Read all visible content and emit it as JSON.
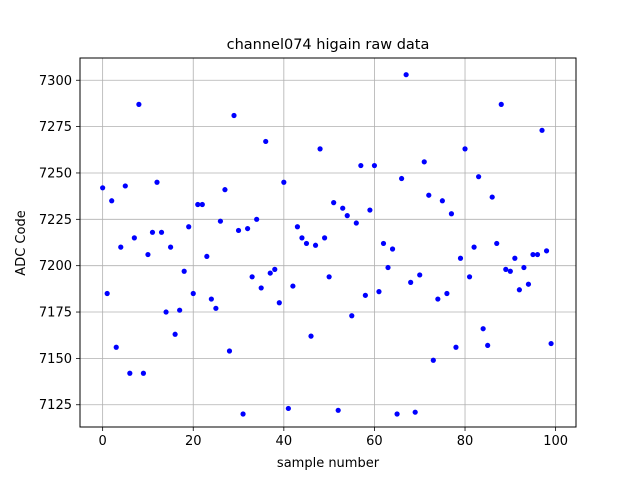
{
  "chart_data": {
    "type": "scatter",
    "title": "channel074 higain raw data",
    "xlabel": "sample number",
    "ylabel": "ADC Code",
    "xlim": [
      -5,
      104.5
    ],
    "ylim": [
      7113,
      7312
    ],
    "xticks": [
      0,
      20,
      40,
      60,
      80,
      100
    ],
    "yticks": [
      7125,
      7150,
      7175,
      7200,
      7225,
      7250,
      7275,
      7300
    ],
    "grid": true,
    "marker_color": "#0000ff",
    "series": [
      {
        "x": [
          0,
          1,
          2,
          3,
          4,
          5,
          6,
          7,
          8,
          9,
          10,
          11,
          12,
          13,
          14,
          15,
          16,
          17,
          18,
          19,
          20,
          21,
          22,
          23,
          24,
          25,
          26,
          27,
          28,
          29,
          30,
          31,
          32,
          33,
          34,
          35,
          36,
          37,
          38,
          39,
          40,
          41,
          42,
          43,
          44,
          45,
          46,
          47,
          48,
          49,
          50,
          51,
          52,
          53,
          54,
          55,
          56,
          57,
          58,
          59,
          60,
          61,
          62,
          63,
          64,
          65,
          66,
          67,
          68,
          69,
          70,
          71,
          72,
          73,
          74,
          75,
          76,
          77,
          78,
          79,
          80,
          81,
          82,
          83,
          84,
          85,
          86,
          87,
          88,
          89,
          90,
          91,
          92,
          93,
          94,
          95,
          96,
          97,
          98,
          99
        ],
        "y": [
          7242,
          7185,
          7235,
          7156,
          7210,
          7243,
          7142,
          7215,
          7287,
          7142,
          7206,
          7218,
          7245,
          7218,
          7175,
          7210,
          7163,
          7176,
          7197,
          7221,
          7185,
          7233,
          7233,
          7205,
          7182,
          7177,
          7224,
          7241,
          7154,
          7281,
          7219,
          7120,
          7220,
          7194,
          7225,
          7188,
          7267,
          7196,
          7198,
          7180,
          7245,
          7123,
          7189,
          7221,
          7215,
          7212,
          7162,
          7211,
          7263,
          7215,
          7194,
          7234,
          7122,
          7231,
          7227,
          7173,
          7223,
          7254,
          7184,
          7230,
          7254,
          7186,
          7212,
          7199,
          7209,
          7120,
          7247,
          7303,
          7191,
          7121,
          7195,
          7256,
          7238,
          7149,
          7182,
          7235,
          7185,
          7228,
          7156,
          7204,
          7263,
          7194,
          7210,
          7248,
          7166,
          7157,
          7237,
          7212,
          7287,
          7198,
          7197,
          7204,
          7187,
          7199,
          7190,
          7206,
          7206,
          7273,
          7208,
          7158
        ]
      }
    ]
  }
}
